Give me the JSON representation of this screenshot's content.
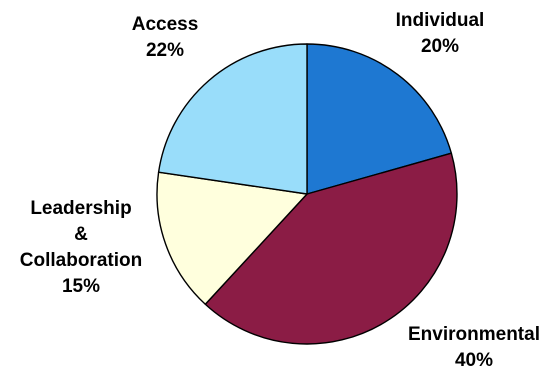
{
  "chart_data": {
    "type": "pie",
    "slices": [
      {
        "label": "Individual",
        "value": 20,
        "display": "20%",
        "color": "#1e78d2"
      },
      {
        "label": "Environmental",
        "value": 40,
        "display": "40%",
        "color": "#8b1c45"
      },
      {
        "label": "Leadership & Collaboration",
        "label_lines": [
          "Leadership",
          "&",
          "Collaboration"
        ],
        "value": 15,
        "display": "15%",
        "color": "#ffffdd"
      },
      {
        "label": "Access",
        "value": 22,
        "display": "22%",
        "color": "#99ddfa"
      }
    ],
    "start_angle": "12 o'clock",
    "direction": "clockwise",
    "legend": "none"
  }
}
